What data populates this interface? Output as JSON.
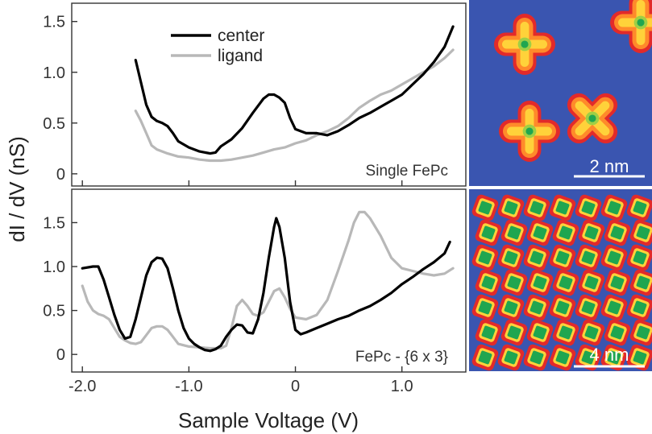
{
  "chart_data": [
    {
      "type": "line",
      "panel": "top",
      "annotation": "Single FePc",
      "xlim": [
        -2.1,
        1.6
      ],
      "ylim": [
        -0.12,
        1.68
      ],
      "yticks": [
        0,
        0.5,
        1.0,
        1.5
      ],
      "ytick_labels": [
        "0",
        "0.5",
        "1.0",
        "1.5"
      ],
      "legend": "top-left",
      "series": [
        {
          "name": "center",
          "color": "#000000",
          "points": [
            [
              -1.5,
              1.12
            ],
            [
              -1.45,
              0.9
            ],
            [
              -1.4,
              0.68
            ],
            [
              -1.35,
              0.56
            ],
            [
              -1.3,
              0.52
            ],
            [
              -1.25,
              0.5
            ],
            [
              -1.2,
              0.47
            ],
            [
              -1.15,
              0.4
            ],
            [
              -1.1,
              0.32
            ],
            [
              -1.0,
              0.26
            ],
            [
              -0.9,
              0.22
            ],
            [
              -0.8,
              0.2
            ],
            [
              -0.75,
              0.21
            ],
            [
              -0.7,
              0.27
            ],
            [
              -0.6,
              0.34
            ],
            [
              -0.5,
              0.45
            ],
            [
              -0.4,
              0.6
            ],
            [
              -0.3,
              0.74
            ],
            [
              -0.25,
              0.78
            ],
            [
              -0.2,
              0.78
            ],
            [
              -0.15,
              0.75
            ],
            [
              -0.1,
              0.7
            ],
            [
              -0.05,
              0.55
            ],
            [
              0.0,
              0.44
            ],
            [
              0.05,
              0.42
            ],
            [
              0.1,
              0.4
            ],
            [
              0.2,
              0.4
            ],
            [
              0.3,
              0.38
            ],
            [
              0.4,
              0.42
            ],
            [
              0.5,
              0.48
            ],
            [
              0.6,
              0.55
            ],
            [
              0.7,
              0.6
            ],
            [
              0.8,
              0.66
            ],
            [
              0.9,
              0.72
            ],
            [
              1.0,
              0.78
            ],
            [
              1.1,
              0.88
            ],
            [
              1.2,
              0.98
            ],
            [
              1.3,
              1.1
            ],
            [
              1.4,
              1.25
            ],
            [
              1.48,
              1.45
            ]
          ]
        },
        {
          "name": "ligand",
          "color": "#b8b8b8",
          "points": [
            [
              -1.5,
              0.62
            ],
            [
              -1.45,
              0.52
            ],
            [
              -1.4,
              0.4
            ],
            [
              -1.35,
              0.28
            ],
            [
              -1.3,
              0.24
            ],
            [
              -1.2,
              0.2
            ],
            [
              -1.1,
              0.17
            ],
            [
              -1.0,
              0.16
            ],
            [
              -0.9,
              0.14
            ],
            [
              -0.8,
              0.13
            ],
            [
              -0.7,
              0.13
            ],
            [
              -0.6,
              0.14
            ],
            [
              -0.5,
              0.16
            ],
            [
              -0.4,
              0.18
            ],
            [
              -0.3,
              0.21
            ],
            [
              -0.2,
              0.24
            ],
            [
              -0.1,
              0.26
            ],
            [
              0.0,
              0.3
            ],
            [
              0.1,
              0.33
            ],
            [
              0.2,
              0.38
            ],
            [
              0.3,
              0.42
            ],
            [
              0.4,
              0.47
            ],
            [
              0.5,
              0.55
            ],
            [
              0.6,
              0.65
            ],
            [
              0.7,
              0.72
            ],
            [
              0.8,
              0.78
            ],
            [
              0.9,
              0.82
            ],
            [
              1.0,
              0.88
            ],
            [
              1.1,
              0.94
            ],
            [
              1.2,
              1.0
            ],
            [
              1.3,
              1.06
            ],
            [
              1.4,
              1.14
            ],
            [
              1.48,
              1.22
            ]
          ]
        }
      ]
    },
    {
      "type": "line",
      "panel": "bottom",
      "annotation": "FePc - {6 x 3}",
      "xlim": [
        -2.1,
        1.6
      ],
      "ylim": [
        -0.2,
        1.88
      ],
      "yticks": [
        0,
        0.5,
        1.0,
        1.5
      ],
      "ytick_labels": [
        "0",
        "0.5",
        "1.0",
        "1.5"
      ],
      "series": [
        {
          "name": "center",
          "color": "#000000",
          "points": [
            [
              -2.0,
              0.98
            ],
            [
              -1.9,
              1.0
            ],
            [
              -1.85,
              1.0
            ],
            [
              -1.8,
              0.85
            ],
            [
              -1.75,
              0.65
            ],
            [
              -1.7,
              0.45
            ],
            [
              -1.65,
              0.28
            ],
            [
              -1.6,
              0.18
            ],
            [
              -1.55,
              0.2
            ],
            [
              -1.5,
              0.4
            ],
            [
              -1.45,
              0.65
            ],
            [
              -1.4,
              0.9
            ],
            [
              -1.35,
              1.05
            ],
            [
              -1.3,
              1.1
            ],
            [
              -1.25,
              1.09
            ],
            [
              -1.2,
              0.98
            ],
            [
              -1.15,
              0.75
            ],
            [
              -1.1,
              0.5
            ],
            [
              -1.05,
              0.3
            ],
            [
              -1.0,
              0.18
            ],
            [
              -0.95,
              0.12
            ],
            [
              -0.9,
              0.08
            ],
            [
              -0.85,
              0.05
            ],
            [
              -0.8,
              0.04
            ],
            [
              -0.75,
              0.06
            ],
            [
              -0.7,
              0.1
            ],
            [
              -0.65,
              0.2
            ],
            [
              -0.6,
              0.28
            ],
            [
              -0.55,
              0.34
            ],
            [
              -0.5,
              0.33
            ],
            [
              -0.45,
              0.25
            ],
            [
              -0.4,
              0.24
            ],
            [
              -0.35,
              0.4
            ],
            [
              -0.3,
              0.7
            ],
            [
              -0.25,
              1.1
            ],
            [
              -0.2,
              1.45
            ],
            [
              -0.18,
              1.55
            ],
            [
              -0.15,
              1.45
            ],
            [
              -0.1,
              1.1
            ],
            [
              -0.05,
              0.6
            ],
            [
              0.0,
              0.28
            ],
            [
              0.05,
              0.23
            ],
            [
              0.1,
              0.25
            ],
            [
              0.2,
              0.3
            ],
            [
              0.3,
              0.35
            ],
            [
              0.4,
              0.4
            ],
            [
              0.5,
              0.44
            ],
            [
              0.6,
              0.5
            ],
            [
              0.7,
              0.55
            ],
            [
              0.8,
              0.62
            ],
            [
              0.9,
              0.7
            ],
            [
              1.0,
              0.8
            ],
            [
              1.1,
              0.88
            ],
            [
              1.2,
              0.97
            ],
            [
              1.3,
              1.05
            ],
            [
              1.4,
              1.15
            ],
            [
              1.45,
              1.28
            ]
          ]
        },
        {
          "name": "ligand",
          "color": "#b8b8b8",
          "points": [
            [
              -2.0,
              0.78
            ],
            [
              -1.95,
              0.6
            ],
            [
              -1.9,
              0.5
            ],
            [
              -1.85,
              0.46
            ],
            [
              -1.8,
              0.44
            ],
            [
              -1.75,
              0.4
            ],
            [
              -1.7,
              0.3
            ],
            [
              -1.65,
              0.2
            ],
            [
              -1.6,
              0.16
            ],
            [
              -1.55,
              0.13
            ],
            [
              -1.5,
              0.12
            ],
            [
              -1.45,
              0.14
            ],
            [
              -1.4,
              0.22
            ],
            [
              -1.35,
              0.3
            ],
            [
              -1.3,
              0.32
            ],
            [
              -1.25,
              0.32
            ],
            [
              -1.2,
              0.28
            ],
            [
              -1.15,
              0.2
            ],
            [
              -1.1,
              0.12
            ],
            [
              -1.0,
              0.09
            ],
            [
              -0.9,
              0.08
            ],
            [
              -0.8,
              0.07
            ],
            [
              -0.7,
              0.07
            ],
            [
              -0.65,
              0.1
            ],
            [
              -0.6,
              0.3
            ],
            [
              -0.55,
              0.55
            ],
            [
              -0.5,
              0.62
            ],
            [
              -0.45,
              0.55
            ],
            [
              -0.4,
              0.46
            ],
            [
              -0.35,
              0.44
            ],
            [
              -0.3,
              0.48
            ],
            [
              -0.25,
              0.6
            ],
            [
              -0.2,
              0.72
            ],
            [
              -0.15,
              0.75
            ],
            [
              -0.1,
              0.65
            ],
            [
              -0.05,
              0.52
            ],
            [
              0.0,
              0.42
            ],
            [
              0.1,
              0.4
            ],
            [
              0.2,
              0.45
            ],
            [
              0.3,
              0.62
            ],
            [
              0.4,
              0.95
            ],
            [
              0.5,
              1.3
            ],
            [
              0.55,
              1.5
            ],
            [
              0.6,
              1.62
            ],
            [
              0.65,
              1.62
            ],
            [
              0.7,
              1.55
            ],
            [
              0.8,
              1.35
            ],
            [
              0.9,
              1.1
            ],
            [
              1.0,
              0.98
            ],
            [
              1.1,
              0.95
            ],
            [
              1.2,
              0.92
            ],
            [
              1.3,
              0.9
            ],
            [
              1.4,
              0.92
            ],
            [
              1.48,
              0.98
            ]
          ]
        }
      ]
    }
  ],
  "axes": {
    "xlabel": "Sample Voltage (V)",
    "ylabel": "dI / dV (nS)",
    "xticks": [
      -2.0,
      -1.0,
      0,
      1.0
    ],
    "xtick_labels": [
      "-2.0",
      "-1.0",
      "0",
      "1.0"
    ]
  },
  "legend": {
    "center_label": "center",
    "ligand_label": "ligand"
  },
  "images": {
    "top": {
      "scale_label": "2 nm",
      "background": "#3a55b0"
    },
    "bottom": {
      "scale_label": "4 nm",
      "background": "#3a55b0"
    }
  },
  "colors": {
    "center": "#000000",
    "ligand": "#b8b8b8",
    "stm_blue": "#3a55b0",
    "stm_red": "#e8232a",
    "stm_yellow": "#f7e24a",
    "stm_green": "#1fa650"
  }
}
